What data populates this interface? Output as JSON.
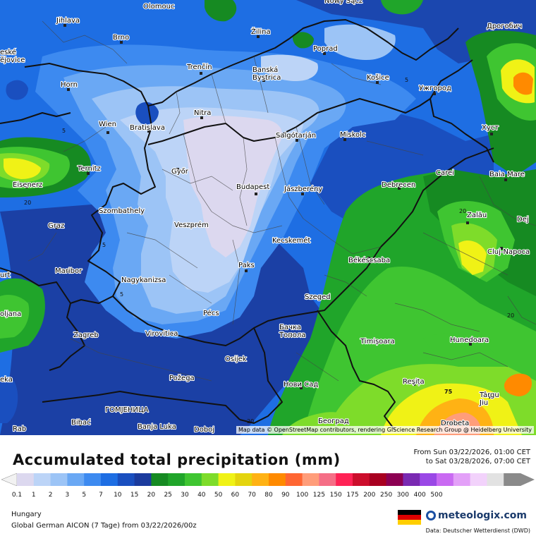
{
  "map": {
    "attribution": "Map data © OpenStreetMap contributors, rendering GIScience Research Group @ Heidelberg University",
    "cities": [
      {
        "name": "Olomouc",
        "dot": false
      },
      {
        "name": "Nowy Sącz",
        "dot": false
      },
      {
        "name": "Jihlava",
        "dot": true
      },
      {
        "name": "Дрогобич",
        "dot": false
      },
      {
        "name": "Brno",
        "dot": true
      },
      {
        "name": "Žilina",
        "dot": true
      },
      {
        "name": "Poprad",
        "dot": true
      },
      {
        "name": "Trenčín",
        "dot": true
      },
      {
        "name": "Banská Bystrica",
        "dot": true
      },
      {
        "name": "Horn",
        "dot": true
      },
      {
        "name": "Košice",
        "dot": true
      },
      {
        "name": "Ужгород",
        "dot": true
      },
      {
        "name": "Nitra",
        "dot": true
      },
      {
        "name": "Wien",
        "dot": true
      },
      {
        "name": "Bratislava",
        "dot": true
      },
      {
        "name": "Salgótarján",
        "dot": true
      },
      {
        "name": "Miskolc",
        "dot": true
      },
      {
        "name": "Хуст",
        "dot": true
      },
      {
        "name": "Ternitz",
        "dot": true
      },
      {
        "name": "Győr",
        "dot": true
      },
      {
        "name": "Carei",
        "dot": true
      },
      {
        "name": "Baia Mare",
        "dot": true
      },
      {
        "name": "Eisenerz",
        "dot": true
      },
      {
        "name": "Budapest",
        "dot": true
      },
      {
        "name": "Jászberény",
        "dot": true
      },
      {
        "name": "Debrecen",
        "dot": true
      },
      {
        "name": "Szombathely",
        "dot": true
      },
      {
        "name": "Graz",
        "dot": true
      },
      {
        "name": "Veszprém",
        "dot": true
      },
      {
        "name": "Zalău",
        "dot": true
      },
      {
        "name": "Kecskemét",
        "dot": true
      },
      {
        "name": "Cluj-Napoca",
        "dot": true
      },
      {
        "name": "Paks",
        "dot": true
      },
      {
        "name": "Békéscsaba",
        "dot": true
      },
      {
        "name": "Maribor",
        "dot": true
      },
      {
        "name": "Nagykanizsa",
        "dot": true
      },
      {
        "name": "Szeged",
        "dot": true
      },
      {
        "name": "Pécs",
        "dot": true
      },
      {
        "name": "Zagreb",
        "dot": true
      },
      {
        "name": "Virovitica",
        "dot": true
      },
      {
        "name": "Бачка Топола",
        "dot": true
      },
      {
        "name": "Timișoara",
        "dot": true
      },
      {
        "name": "Hunedoara",
        "dot": true
      },
      {
        "name": "Osijek",
        "dot": true
      },
      {
        "name": "Požega",
        "dot": true
      },
      {
        "name": "Reșița",
        "dot": true
      },
      {
        "name": "Нови Сад",
        "dot": true
      },
      {
        "name": "Târgu Jiu",
        "dot": true
      },
      {
        "name": "ГОМЈЕНИЦА",
        "dot": true
      },
      {
        "name": "Bihać",
        "dot": true
      },
      {
        "name": "Banja Luka",
        "dot": true
      },
      {
        "name": "Doboj",
        "dot": true
      },
      {
        "name": "Београд",
        "dot": true
      },
      {
        "name": "Drobeta",
        "dot": true
      }
    ],
    "edge_labels": [
      "eské",
      "ějovice",
      "Dej",
      "urt",
      "oljana",
      "eka",
      "Rab"
    ],
    "contour_labels": [
      "5",
      "5",
      "5",
      "5",
      "20",
      "20",
      "20",
      "20",
      "75"
    ]
  },
  "legend": {
    "title": "Accumulated total precipitation (mm)",
    "period_from": "From Sun 03/22/2026, 01:00 CET",
    "period_to": "to Sat 03/28/2026, 07:00 CET",
    "colors": [
      "#dcd8ef",
      "#bcd4f7",
      "#9cc4f6",
      "#6aa8f4",
      "#3d8af0",
      "#1e6ee3",
      "#1a4fbf",
      "#1b3b9d",
      "#168a22",
      "#20a52a",
      "#3fc531",
      "#7edc2a",
      "#f0f216",
      "#e4d40e",
      "#ffb214",
      "#ff8a00",
      "#ff6633",
      "#ff9d7a",
      "#f56e86",
      "#ff2255",
      "#cc0e2c",
      "#a80020",
      "#8c0052",
      "#7a2ab2",
      "#9a48e6",
      "#c96af2",
      "#e3a0f8",
      "#f2d2fb",
      "#e2e2e2",
      "#8a8a8a"
    ],
    "ticks": [
      "0.1",
      "1",
      "2",
      "3",
      "5",
      "7",
      "10",
      "15",
      "20",
      "25",
      "30",
      "40",
      "50",
      "60",
      "70",
      "80",
      "90",
      "100",
      "125",
      "150",
      "175",
      "200",
      "250",
      "300",
      "400",
      "500"
    ],
    "region": "Hungary",
    "model": "Global German AICON (7 Tage)  from  03/22/2026/00z",
    "brand": "meteologix.com",
    "data_source": "Data: Deutscher Wetterdienst (DWD)"
  }
}
